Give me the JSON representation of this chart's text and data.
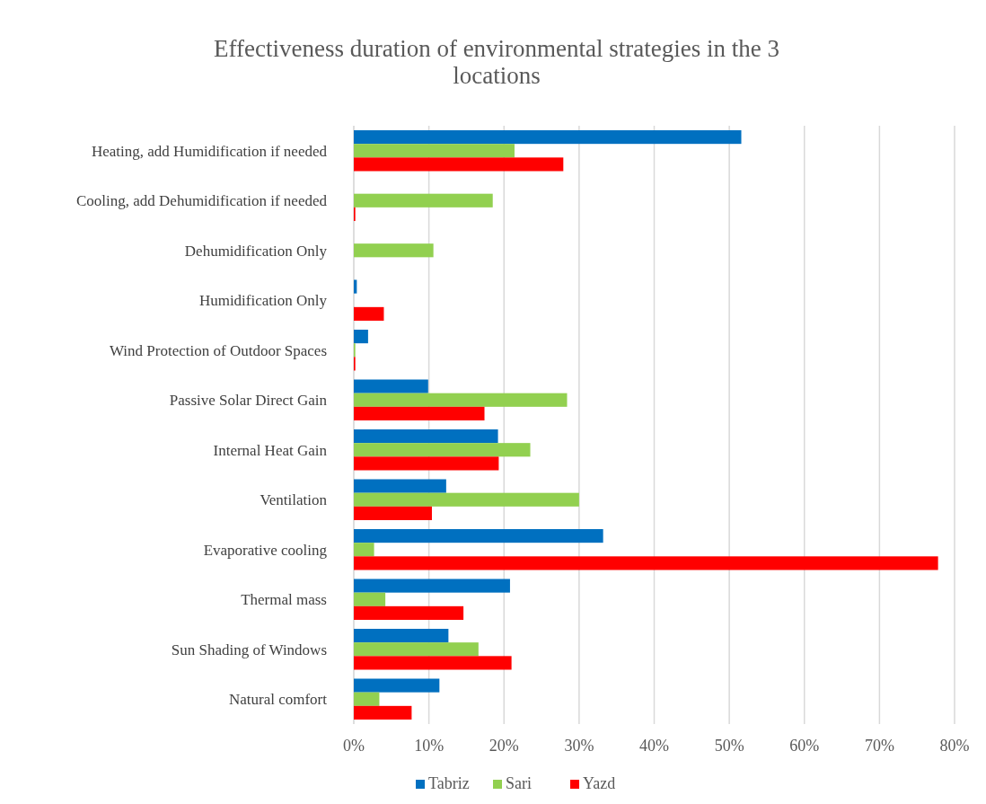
{
  "chart_data": {
    "type": "bar",
    "orientation": "horizontal",
    "title": "Effectiveness duration of environmental strategies in the 3 locations",
    "categories": [
      "Heating, add Humidification if needed",
      "Cooling, add Dehumidification if needed",
      "Dehumidification Only",
      "Humidification Only",
      "Wind Protection of Outdoor Spaces",
      "Passive Solar Direct Gain",
      "Internal Heat Gain",
      "Ventilation",
      "Evaporative cooling",
      "Thermal mass",
      "Sun Shading of Windows",
      "Natural comfort"
    ],
    "series": [
      {
        "name": "Tabriz",
        "color": "#0070c0",
        "values": [
          51.6,
          0,
          0,
          0.4,
          1.9,
          9.9,
          19.2,
          12.3,
          33.2,
          20.8,
          12.6,
          11.4
        ]
      },
      {
        "name": "Sari",
        "color": "#92d050",
        "values": [
          21.4,
          18.5,
          10.6,
          0,
          0.2,
          28.4,
          23.5,
          30.0,
          2.7,
          4.2,
          16.6,
          3.4
        ]
      },
      {
        "name": "Yazd",
        "color": "#ff0000",
        "values": [
          27.9,
          0.2,
          0,
          4.0,
          0.2,
          17.4,
          19.3,
          10.4,
          77.8,
          14.6,
          21.0,
          7.7
        ]
      }
    ],
    "xlim": [
      0,
      80
    ],
    "xticks": [
      {
        "value": 0,
        "label": "0%"
      },
      {
        "value": 10,
        "label": "10%"
      },
      {
        "value": 20,
        "label": "20%"
      },
      {
        "value": 30,
        "label": "30%"
      },
      {
        "value": 40,
        "label": "40%"
      },
      {
        "value": 50,
        "label": "50%"
      },
      {
        "value": 60,
        "label": "60%"
      },
      {
        "value": 70,
        "label": "70%"
      },
      {
        "value": 80,
        "label": "80%"
      }
    ],
    "grid": "x",
    "legend": "bottom"
  }
}
